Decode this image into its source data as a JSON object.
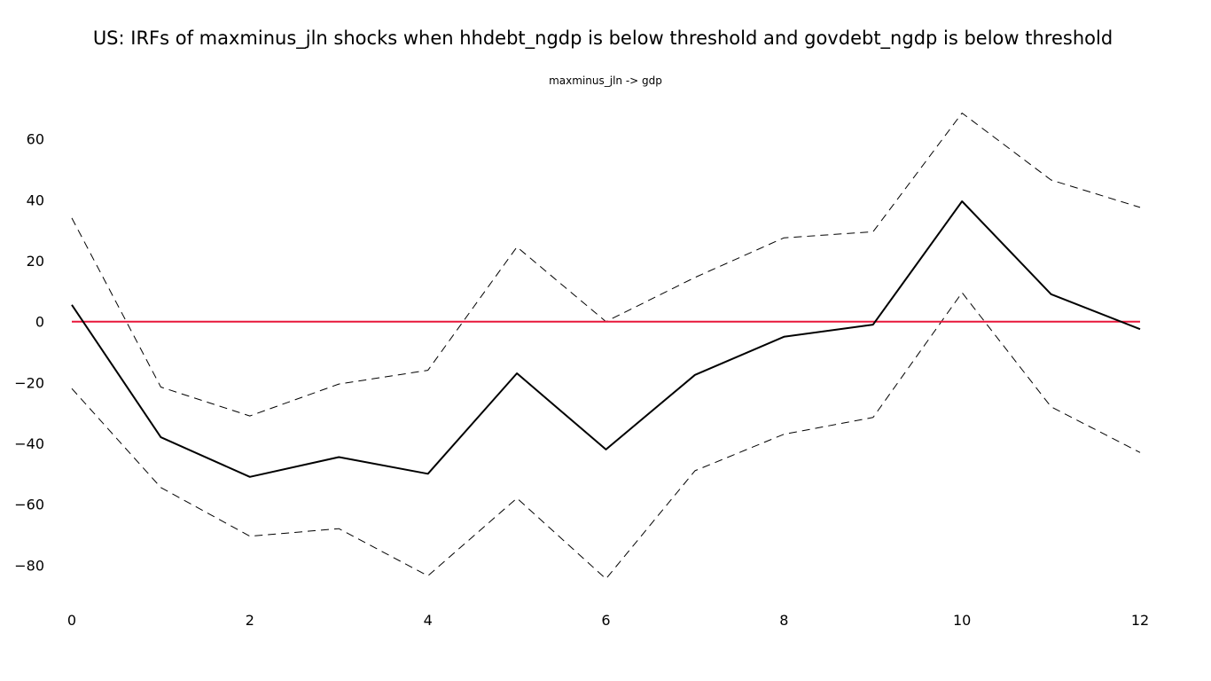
{
  "chart_data": {
    "type": "line",
    "title": "US: IRFs of maxminus_jln shocks when hhdebt_ngdp is below threshold and govdebt_ngdp is below threshold",
    "subplot_title": "maxminus_jln -> gdp",
    "xlabel": "",
    "ylabel": "",
    "x": [
      0,
      1,
      2,
      3,
      4,
      5,
      6,
      7,
      8,
      9,
      10,
      11,
      12
    ],
    "xlim": [
      0,
      12
    ],
    "ylim": [
      -93,
      73
    ],
    "x_ticks": [
      0,
      2,
      4,
      6,
      8,
      10,
      12
    ],
    "y_ticks": [
      60,
      40,
      20,
      0,
      -20,
      -40,
      -60,
      -80
    ],
    "x_tick_labels": [
      "0",
      "2",
      "4",
      "6",
      "8",
      "10",
      "12"
    ],
    "y_tick_labels": [
      "60",
      "40",
      "20",
      "0",
      "−20",
      "−40",
      "−60",
      "−80"
    ],
    "grid": false,
    "legend": "none",
    "series": [
      {
        "role": "irf",
        "style": "solid",
        "color": "#000000",
        "values": [
          5.5,
          -38,
          -51,
          -44.5,
          -50,
          -17,
          -42,
          -17.5,
          -5,
          -1,
          39.5,
          9,
          -2.5
        ]
      },
      {
        "role": "upper-band",
        "style": "dashed",
        "color": "#000000",
        "values": [
          34,
          -21.5,
          -31,
          -20.5,
          -16,
          24.5,
          0,
          14.5,
          27.5,
          29.5,
          68.5,
          46.5,
          37.5
        ]
      },
      {
        "role": "lower-band",
        "style": "dashed",
        "color": "#000000",
        "values": [
          -22,
          -54.5,
          -70.5,
          -68,
          -83.5,
          -58,
          -84.5,
          -49,
          -37,
          -31.5,
          9.5,
          -28,
          -43
        ]
      },
      {
        "role": "zero-line",
        "style": "solid",
        "color": "#e8173a",
        "values": [
          0,
          0,
          0,
          0,
          0,
          0,
          0,
          0,
          0,
          0,
          0,
          0,
          0
        ]
      }
    ]
  }
}
